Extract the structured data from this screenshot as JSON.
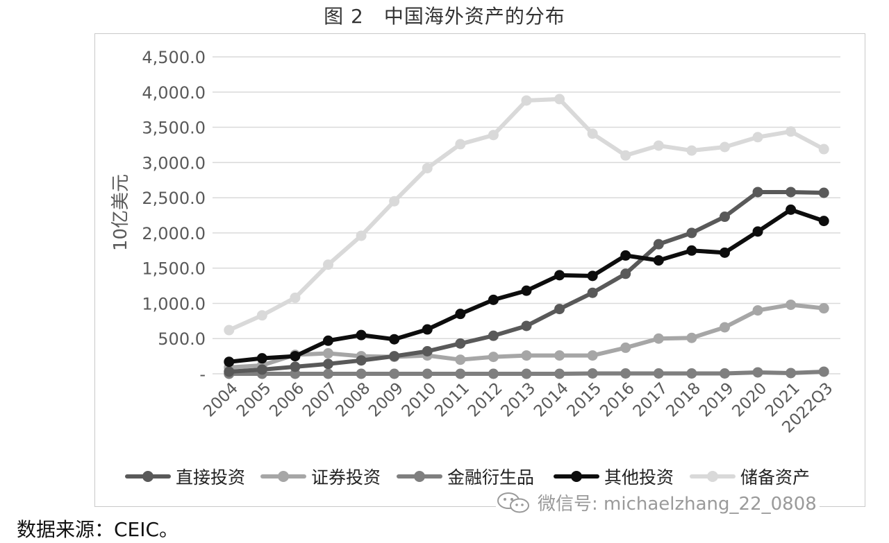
{
  "figure_title": "图 2　中国海外资产的分布",
  "source_note": "数据来源：CEIC。",
  "watermark": {
    "text": "微信号: michaelzhang_22_0808",
    "icon": "wechat-icon"
  },
  "colors": {
    "fdi": "#595959",
    "portfolio": "#a6a6a6",
    "derivatives": "#7f7f7f",
    "other": "#0d0d0d",
    "reserves": "#d9d9d9",
    "grid": "#d9d9d9",
    "axis_text": "#595959"
  },
  "chart_data": {
    "type": "line",
    "title": "中国海外资产的分布",
    "ylabel": "10亿美元",
    "xlabel": "",
    "ylim": [
      0,
      4500
    ],
    "yticks": [
      0,
      500,
      1000,
      1500,
      2000,
      2500,
      3000,
      3500,
      4000,
      4500
    ],
    "ytick_labels": [
      "-",
      "500.0",
      "1,000.0",
      "1,500.0",
      "2,000.0",
      "2,500.0",
      "3,000.0",
      "3,500.0",
      "4,000.0",
      "4,500.0"
    ],
    "grid": true,
    "legend_position": "bottom",
    "categories": [
      "2004",
      "2005",
      "2006",
      "2007",
      "2008",
      "2009",
      "2010",
      "2011",
      "2012",
      "2013",
      "2014",
      "2015",
      "2016",
      "2017",
      "2018",
      "2019",
      "2020",
      "2021",
      "2022Q3"
    ],
    "series": [
      {
        "name": "直接投资",
        "key": "fdi",
        "values": [
          30,
          60,
          100,
          140,
          190,
          250,
          320,
          430,
          540,
          680,
          920,
          1150,
          1420,
          1840,
          2000,
          2230,
          2580,
          2580,
          2570
        ]
      },
      {
        "name": "证券投资",
        "key": "portfolio",
        "values": [
          90,
          120,
          270,
          290,
          250,
          240,
          260,
          200,
          240,
          260,
          260,
          260,
          370,
          500,
          510,
          660,
          900,
          980,
          930
        ]
      },
      {
        "name": "金融衍生品",
        "key": "derivatives",
        "values": [
          0,
          0,
          0,
          0,
          0,
          0,
          0,
          0,
          0,
          0,
          0,
          5,
          5,
          5,
          5,
          5,
          20,
          10,
          30
        ]
      },
      {
        "name": "其他投资",
        "key": "other",
        "values": [
          170,
          220,
          250,
          470,
          550,
          490,
          630,
          850,
          1050,
          1180,
          1400,
          1390,
          1680,
          1610,
          1750,
          1720,
          2020,
          2330,
          2170
        ]
      },
      {
        "name": "储备资产",
        "key": "reserves",
        "values": [
          620,
          830,
          1080,
          1550,
          1960,
          2450,
          2920,
          3260,
          3390,
          3880,
          3900,
          3410,
          3100,
          3240,
          3170,
          3220,
          3360,
          3440,
          3190
        ]
      }
    ]
  }
}
